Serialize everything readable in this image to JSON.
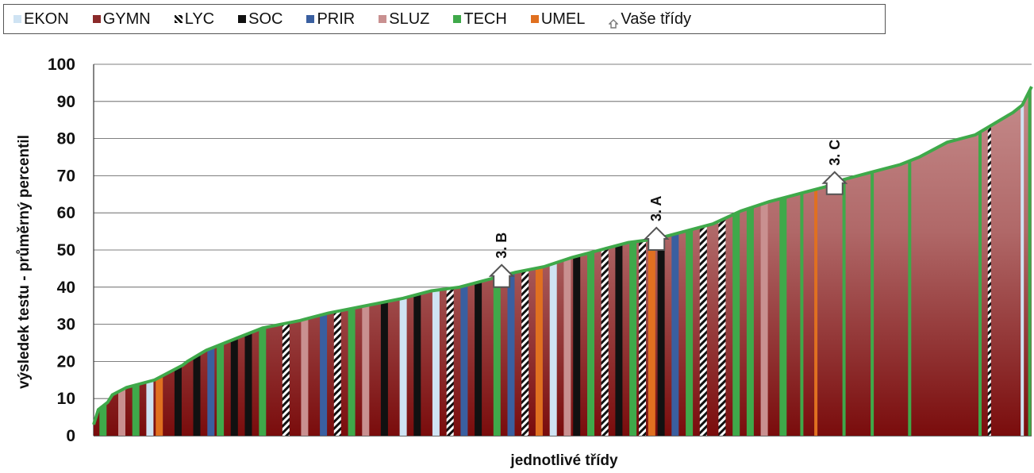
{
  "legend": [
    {
      "label": "EKON",
      "color": "#cfe3f3",
      "icon": "light-blue-square"
    },
    {
      "label": "GYMN",
      "color": "#8b2a2a",
      "icon": "maroon-square"
    },
    {
      "label": "LYC",
      "color": "#111111",
      "icon": "black-white-stripe"
    },
    {
      "label": "SOC",
      "color": "#111111",
      "icon": "black-square"
    },
    {
      "label": "PRIR",
      "color": "#3a5fa0",
      "icon": "blue-square"
    },
    {
      "label": "SLUZ",
      "color": "#c99090",
      "icon": "pink-square"
    },
    {
      "label": "TECH",
      "color": "#3fa94a",
      "icon": "green-square"
    },
    {
      "label": "UMEL",
      "color": "#e07020",
      "icon": "orange-square"
    },
    {
      "label": "Vaše třídy",
      "color": "#999999",
      "icon": "house-icon"
    }
  ],
  "chart_data": {
    "type": "area",
    "title": "",
    "xlabel": "jednotlivé třídy",
    "ylabel": "výsledek testu - průměrný percentil",
    "ylim": [
      0,
      100
    ],
    "yticks": [
      0,
      10,
      20,
      30,
      40,
      50,
      60,
      70,
      80,
      90,
      100
    ],
    "grid": true,
    "legend_position": "top",
    "series_note": "classes sorted ascending by average percentil; colored by school type",
    "curve": {
      "x_rank_fraction": [
        0.0,
        0.005,
        0.015,
        0.02,
        0.035,
        0.05,
        0.065,
        0.08,
        0.095,
        0.1,
        0.12,
        0.14,
        0.16,
        0.18,
        0.2,
        0.22,
        0.235,
        0.25,
        0.27,
        0.3,
        0.33,
        0.36,
        0.39,
        0.42,
        0.45,
        0.48,
        0.51,
        0.54,
        0.57,
        0.6,
        0.63,
        0.66,
        0.69,
        0.72,
        0.75,
        0.78,
        0.8,
        0.83,
        0.86,
        0.88,
        0.91,
        0.94,
        0.96,
        0.98,
        0.99,
        1.0
      ],
      "y": [
        3,
        7,
        9,
        11,
        13,
        14,
        15,
        17,
        19,
        20,
        23,
        25,
        27,
        29,
        30,
        31,
        32,
        33,
        34,
        35.5,
        37,
        39,
        40,
        42,
        44,
        45.5,
        48,
        50,
        52,
        53,
        55,
        57,
        60.5,
        63,
        65,
        67,
        69,
        71,
        73,
        75,
        79,
        81,
        84,
        87,
        89,
        94
      ]
    },
    "bars": [
      {
        "at": 0.01,
        "type": "TECH"
      },
      {
        "at": 0.03,
        "type": "SLUZ"
      },
      {
        "at": 0.045,
        "type": "TECH"
      },
      {
        "at": 0.06,
        "type": "EKON"
      },
      {
        "at": 0.07,
        "type": "UMEL"
      },
      {
        "at": 0.09,
        "type": "SOC"
      },
      {
        "at": 0.11,
        "type": "SOC"
      },
      {
        "at": 0.125,
        "type": "PRIR"
      },
      {
        "at": 0.135,
        "type": "TECH"
      },
      {
        "at": 0.15,
        "type": "SOC"
      },
      {
        "at": 0.165,
        "type": "SOC"
      },
      {
        "at": 0.18,
        "type": "TECH"
      },
      {
        "at": 0.205,
        "type": "LYC"
      },
      {
        "at": 0.225,
        "type": "SLUZ"
      },
      {
        "at": 0.245,
        "type": "PRIR"
      },
      {
        "at": 0.26,
        "type": "LYC"
      },
      {
        "at": 0.275,
        "type": "TECH"
      },
      {
        "at": 0.29,
        "type": "SLUZ"
      },
      {
        "at": 0.31,
        "type": "SOC"
      },
      {
        "at": 0.33,
        "type": "EKON"
      },
      {
        "at": 0.345,
        "type": "SOC"
      },
      {
        "at": 0.365,
        "type": "EKON"
      },
      {
        "at": 0.38,
        "type": "LYC"
      },
      {
        "at": 0.395,
        "type": "PRIR"
      },
      {
        "at": 0.41,
        "type": "SOC"
      },
      {
        "at": 0.43,
        "type": "TECH"
      },
      {
        "at": 0.445,
        "type": "PRIR"
      },
      {
        "at": 0.46,
        "type": "LYC"
      },
      {
        "at": 0.475,
        "type": "UMEL"
      },
      {
        "at": 0.49,
        "type": "EKON"
      },
      {
        "at": 0.505,
        "type": "SLUZ"
      },
      {
        "at": 0.515,
        "type": "SOC"
      },
      {
        "at": 0.53,
        "type": "TECH"
      },
      {
        "at": 0.545,
        "type": "LYC"
      },
      {
        "at": 0.56,
        "type": "SOC"
      },
      {
        "at": 0.575,
        "type": "TECH"
      },
      {
        "at": 0.585,
        "type": "LYC"
      },
      {
        "at": 0.595,
        "type": "UMEL"
      },
      {
        "at": 0.605,
        "type": "SOC"
      },
      {
        "at": 0.62,
        "type": "PRIR"
      },
      {
        "at": 0.635,
        "type": "TECH"
      },
      {
        "at": 0.65,
        "type": "LYC"
      },
      {
        "at": 0.67,
        "type": "LYC"
      },
      {
        "at": 0.685,
        "type": "TECH"
      },
      {
        "at": 0.7,
        "type": "TECH"
      },
      {
        "at": 0.715,
        "type": "SLUZ"
      },
      {
        "at": 0.735,
        "type": "TECH"
      },
      {
        "at": 0.755,
        "type": "TECH"
      },
      {
        "at": 0.77,
        "type": "UMEL"
      },
      {
        "at": 0.8,
        "type": "TECH"
      },
      {
        "at": 0.83,
        "type": "TECH"
      },
      {
        "at": 0.87,
        "type": "TECH"
      },
      {
        "at": 0.945,
        "type": "TECH"
      },
      {
        "at": 0.955,
        "type": "LYC"
      },
      {
        "at": 0.99,
        "type": "EKON"
      },
      {
        "at": 0.998,
        "type": "TECH"
      }
    ],
    "annotations": [
      {
        "label": "3. B",
        "x_rank_fraction": 0.435,
        "y": 40
      },
      {
        "label": "3. A",
        "x_rank_fraction": 0.6,
        "y": 52
      },
      {
        "label": "3. C",
        "x_rank_fraction": 0.79,
        "y": 66
      }
    ]
  }
}
